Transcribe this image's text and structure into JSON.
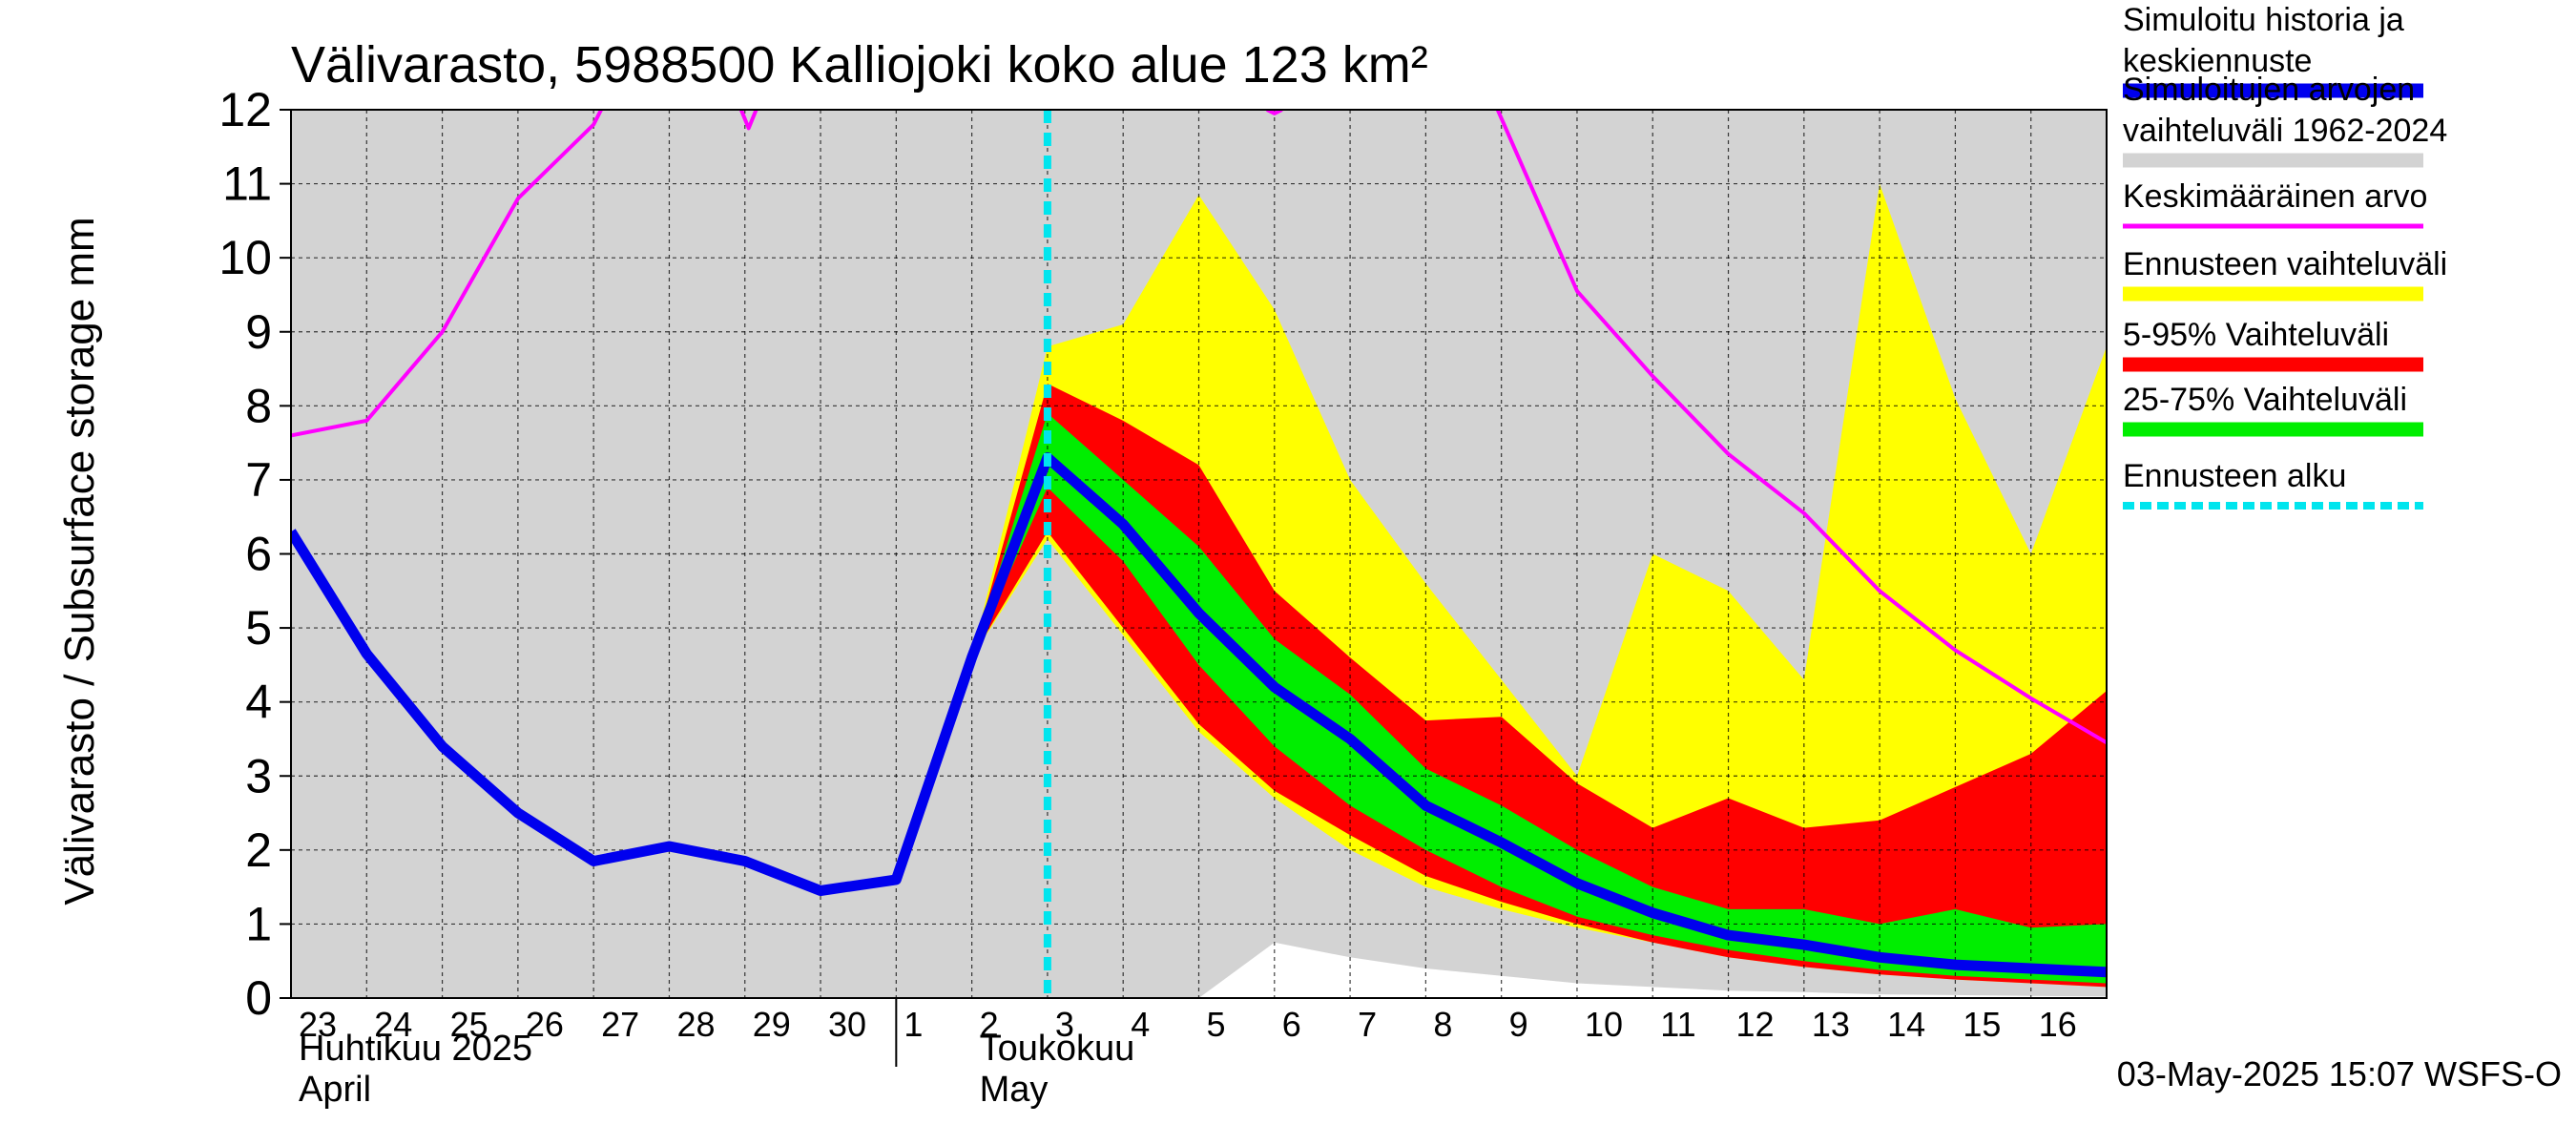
{
  "chart_data": {
    "type": "area",
    "title": "Välivarasto, 5988500 Kalliojoki koko alue 123 km²",
    "ylabel": "Välivarasto / Subsurface storage  mm",
    "xlabel": "",
    "ylim": [
      0,
      12
    ],
    "y_ticks": [
      0,
      1,
      2,
      3,
      4,
      5,
      6,
      7,
      8,
      9,
      10,
      11,
      12
    ],
    "x_ticks": [
      "23",
      "24",
      "25",
      "26",
      "27",
      "28",
      "29",
      "30",
      "1",
      "2",
      "3",
      "4",
      "5",
      "6",
      "7",
      "8",
      "9",
      "10",
      "11",
      "12",
      "13",
      "14",
      "15",
      "16"
    ],
    "x_range_days": [
      0,
      24
    ],
    "month_labels": [
      {
        "fi": "Huhtikuu  2025",
        "en": "April",
        "day": 0
      },
      {
        "fi": "Toukokuu",
        "en": "May",
        "day": 9
      }
    ],
    "month_boundary_day": 8,
    "forecast_start_day": 10,
    "grid": true,
    "series": [
      {
        "name": "Simuloitujen arvojen vaihteluväli 1962-2024",
        "kind": "band",
        "color": "#d3d3d3",
        "upper": [
          [
            0,
            12
          ],
          [
            24,
            12
          ]
        ],
        "lower": [
          [
            0,
            0
          ],
          [
            12,
            0
          ],
          [
            13,
            0.75
          ],
          [
            14,
            0.55
          ],
          [
            15,
            0.4
          ],
          [
            16,
            0.3
          ],
          [
            17,
            0.2
          ],
          [
            18,
            0.15
          ],
          [
            19,
            0.1
          ],
          [
            20,
            0.08
          ],
          [
            21,
            0.05
          ],
          [
            22,
            0.04
          ],
          [
            23,
            0.03
          ],
          [
            24,
            0.02
          ]
        ]
      },
      {
        "name": "Ennusteen vaihteluväli",
        "kind": "band",
        "color": "#ffff00",
        "upper": [
          [
            9,
            4.6
          ],
          [
            10,
            8.8
          ],
          [
            11,
            9.1
          ],
          [
            12,
            10.85
          ],
          [
            13,
            9.3
          ],
          [
            14,
            7.0
          ],
          [
            15,
            5.6
          ],
          [
            16,
            4.3
          ],
          [
            17,
            3.0
          ],
          [
            18,
            6.0
          ],
          [
            19,
            5.5
          ],
          [
            20,
            4.3
          ],
          [
            21,
            11.0
          ],
          [
            22,
            8.1
          ],
          [
            23,
            6.0
          ],
          [
            24,
            8.8
          ]
        ],
        "lower": [
          [
            9,
            4.6
          ],
          [
            10,
            6.2
          ],
          [
            11,
            4.9
          ],
          [
            12,
            3.6
          ],
          [
            13,
            2.7
          ],
          [
            14,
            2.0
          ],
          [
            15,
            1.5
          ],
          [
            16,
            1.2
          ],
          [
            17,
            0.95
          ],
          [
            18,
            0.75
          ],
          [
            19,
            0.55
          ],
          [
            20,
            0.42
          ],
          [
            21,
            0.32
          ],
          [
            22,
            0.25
          ],
          [
            23,
            0.2
          ],
          [
            24,
            0.15
          ]
        ]
      },
      {
        "name": "5-95% Vaihteluväli",
        "kind": "band",
        "color": "#ff0000",
        "upper": [
          [
            9,
            4.6
          ],
          [
            10,
            8.3
          ],
          [
            11,
            7.8
          ],
          [
            12,
            7.2
          ],
          [
            13,
            5.5
          ],
          [
            14,
            4.6
          ],
          [
            15,
            3.75
          ],
          [
            16,
            3.8
          ],
          [
            17,
            2.9
          ],
          [
            18,
            2.3
          ],
          [
            19,
            2.7
          ],
          [
            20,
            2.3
          ],
          [
            21,
            2.4
          ],
          [
            22,
            2.85
          ],
          [
            23,
            3.3
          ],
          [
            24,
            4.15
          ]
        ],
        "lower": [
          [
            9,
            4.6
          ],
          [
            10,
            6.3
          ],
          [
            11,
            5.0
          ],
          [
            12,
            3.7
          ],
          [
            13,
            2.8
          ],
          [
            14,
            2.2
          ],
          [
            15,
            1.65
          ],
          [
            16,
            1.3
          ],
          [
            17,
            1.0
          ],
          [
            18,
            0.75
          ],
          [
            19,
            0.55
          ],
          [
            20,
            0.42
          ],
          [
            21,
            0.32
          ],
          [
            22,
            0.25
          ],
          [
            23,
            0.2
          ],
          [
            24,
            0.15
          ]
        ]
      },
      {
        "name": "25-75% Vaihteluväli",
        "kind": "band",
        "color": "#00ee00",
        "upper": [
          [
            9,
            4.6
          ],
          [
            10,
            7.9
          ],
          [
            11,
            7.0
          ],
          [
            12,
            6.1
          ],
          [
            13,
            4.85
          ],
          [
            14,
            4.1
          ],
          [
            15,
            3.1
          ],
          [
            16,
            2.6
          ],
          [
            17,
            2.0
          ],
          [
            18,
            1.5
          ],
          [
            19,
            1.2
          ],
          [
            20,
            1.2
          ],
          [
            21,
            1.0
          ],
          [
            22,
            1.2
          ],
          [
            23,
            0.95
          ],
          [
            24,
            1.0
          ]
        ],
        "lower": [
          [
            9,
            4.6
          ],
          [
            10,
            6.9
          ],
          [
            11,
            5.9
          ],
          [
            12,
            4.5
          ],
          [
            13,
            3.4
          ],
          [
            14,
            2.6
          ],
          [
            15,
            2.0
          ],
          [
            16,
            1.5
          ],
          [
            17,
            1.1
          ],
          [
            18,
            0.85
          ],
          [
            19,
            0.65
          ],
          [
            20,
            0.5
          ],
          [
            21,
            0.38
          ],
          [
            22,
            0.3
          ],
          [
            23,
            0.25
          ],
          [
            24,
            0.2
          ]
        ]
      },
      {
        "name": "Keskimääräinen arvo",
        "kind": "line",
        "color": "#ff00ff",
        "width": 4,
        "segments": [
          [
            [
              0,
              7.6
            ],
            [
              1,
              7.8
            ],
            [
              2,
              9.0
            ],
            [
              3,
              10.8
            ],
            [
              4,
              11.8
            ],
            [
              4.1,
              12.0
            ]
          ],
          [
            [
              5.95,
              12.0
            ],
            [
              6.05,
              11.75
            ],
            [
              6.15,
              12.0
            ]
          ],
          [
            [
              12.9,
              12.0
            ],
            [
              13.0,
              11.95
            ],
            [
              13.1,
              12.0
            ]
          ],
          [
            [
              15.95,
              12.0
            ],
            [
              17,
              9.55
            ],
            [
              18,
              8.4
            ],
            [
              19,
              7.35
            ],
            [
              20,
              6.55
            ],
            [
              21,
              5.5
            ],
            [
              22,
              4.7
            ],
            [
              23,
              4.05
            ],
            [
              24,
              3.45
            ]
          ]
        ]
      },
      {
        "name": "Simuloitu historia ja keskiennuste",
        "kind": "line",
        "color": "#0000ee",
        "width": 11,
        "points": [
          [
            0,
            6.3
          ],
          [
            1,
            4.65
          ],
          [
            2,
            3.4
          ],
          [
            3,
            2.5
          ],
          [
            4,
            1.85
          ],
          [
            5,
            2.05
          ],
          [
            6,
            1.85
          ],
          [
            7,
            1.45
          ],
          [
            8,
            1.6
          ],
          [
            9,
            4.6
          ],
          [
            10,
            7.3
          ],
          [
            11,
            6.4
          ],
          [
            12,
            5.2
          ],
          [
            13,
            4.2
          ],
          [
            14,
            3.5
          ],
          [
            15,
            2.6
          ],
          [
            16,
            2.1
          ],
          [
            17,
            1.55
          ],
          [
            18,
            1.15
          ],
          [
            19,
            0.85
          ],
          [
            20,
            0.72
          ],
          [
            21,
            0.55
          ],
          [
            22,
            0.45
          ],
          [
            23,
            0.4
          ],
          [
            24,
            0.35
          ]
        ]
      },
      {
        "name": "Ennusteen alku",
        "kind": "vline",
        "color": "#00e5ee",
        "day": 10
      }
    ],
    "legend": [
      {
        "label": "Simuloitu historia ja keskiennuste",
        "color": "#0000ee",
        "style": "thick"
      },
      {
        "label": "Simuloitujen arvojen vaihteluväli 1962-2024",
        "color": "#d3d3d3",
        "style": "thick"
      },
      {
        "label": "Keskimääräinen arvo",
        "color": "#ff00ff",
        "style": "thin"
      },
      {
        "label": "Ennusteen vaihteluväli",
        "color": "#ffff00",
        "style": "thick"
      },
      {
        "label": "5-95% Vaihteluväli",
        "color": "#ff0000",
        "style": "thick"
      },
      {
        "label": "25-75% Vaihteluväli",
        "color": "#00ee00",
        "style": "thick"
      },
      {
        "label": "Ennusteen alku",
        "color": "#00e5ee",
        "style": "dashed"
      }
    ],
    "legend_position": "right",
    "footer": "03-May-2025 15:07 WSFS-O"
  }
}
